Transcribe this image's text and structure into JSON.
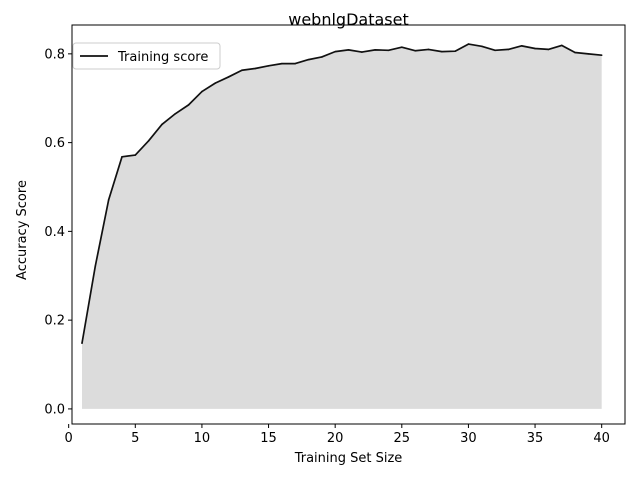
{
  "chart_data": {
    "type": "area",
    "title": "webnlgDataset",
    "xlabel": "Training Set Size",
    "ylabel": "Accuracy Score",
    "xlim": [
      0.25,
      41.75
    ],
    "ylim": [
      -0.034,
      0.865
    ],
    "xticks": [
      0,
      5,
      10,
      15,
      20,
      25,
      30,
      35,
      40
    ],
    "yticks": [
      0.0,
      0.2,
      0.4,
      0.6,
      0.8
    ],
    "xtick_labels": [
      "0",
      "5",
      "10",
      "15",
      "20",
      "25",
      "30",
      "35",
      "40"
    ],
    "ytick_labels": [
      "0.0",
      "0.2",
      "0.4",
      "0.6",
      "0.8"
    ],
    "grid": false,
    "legend_position": "upper-left",
    "colors": {
      "line": "#111111",
      "fill": "#dcdcdc"
    },
    "series": [
      {
        "name": "Training score",
        "x": [
          1,
          2,
          3,
          4,
          5,
          6,
          7,
          8,
          9,
          10,
          11,
          12,
          13,
          14,
          15,
          16,
          17,
          18,
          19,
          20,
          21,
          22,
          23,
          24,
          25,
          26,
          27,
          28,
          29,
          30,
          31,
          32,
          33,
          34,
          35,
          36,
          37,
          38,
          39,
          40
        ],
        "values": [
          0.148,
          0.322,
          0.471,
          0.568,
          0.572,
          0.604,
          0.641,
          0.665,
          0.685,
          0.715,
          0.734,
          0.748,
          0.763,
          0.767,
          0.773,
          0.778,
          0.778,
          0.787,
          0.793,
          0.805,
          0.809,
          0.804,
          0.809,
          0.808,
          0.815,
          0.807,
          0.81,
          0.805,
          0.806,
          0.822,
          0.817,
          0.808,
          0.81,
          0.818,
          0.812,
          0.81,
          0.819,
          0.803,
          0.8,
          0.797
        ]
      }
    ]
  }
}
